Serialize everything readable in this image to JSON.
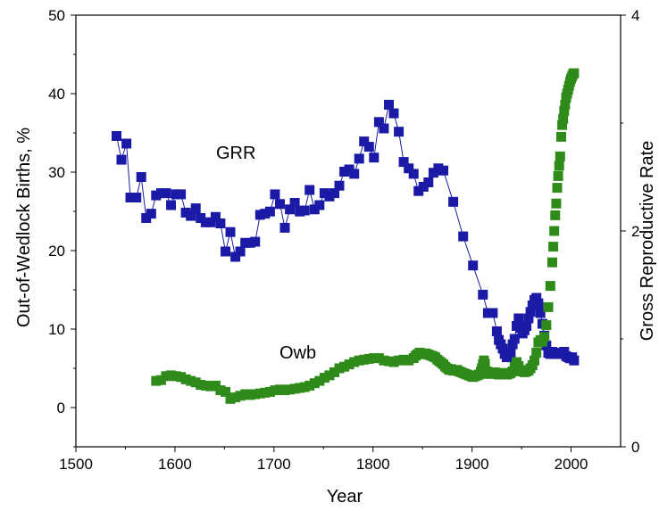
{
  "chart_data": {
    "type": "scatter",
    "title": "",
    "xlabel": "Year",
    "ylabel_left": "Out-of-Wedlock Births, %",
    "ylabel_right": "Gross Reproductive Rate",
    "xlim": [
      1500,
      2050
    ],
    "ylim_left": [
      -5,
      50
    ],
    "ylim_right": [
      0,
      4
    ],
    "x_ticks": [
      "1500",
      "1600",
      "1700",
      "1800",
      "1900",
      "2000"
    ],
    "y_left_ticks": [
      "0",
      "10",
      "20",
      "30",
      "40",
      "50"
    ],
    "y_right_ticks": [
      "0",
      "2",
      "4"
    ],
    "grid": false,
    "series": [
      {
        "name": "GRR",
        "axis": "right",
        "color": "#1a1aa6",
        "marker": "square",
        "line": true,
        "points": [
          [
            1541,
            2.88
          ],
          [
            1546,
            2.66
          ],
          [
            1551,
            2.81
          ],
          [
            1555,
            2.31
          ],
          [
            1561,
            2.31
          ],
          [
            1566,
            2.5
          ],
          [
            1571,
            2.12
          ],
          [
            1576,
            2.16
          ],
          [
            1581,
            2.33
          ],
          [
            1586,
            2.35
          ],
          [
            1591,
            2.35
          ],
          [
            1596,
            2.24
          ],
          [
            1601,
            2.34
          ],
          [
            1606,
            2.34
          ],
          [
            1611,
            2.17
          ],
          [
            1616,
            2.14
          ],
          [
            1621,
            2.21
          ],
          [
            1626,
            2.12
          ],
          [
            1631,
            2.08
          ],
          [
            1636,
            2.08
          ],
          [
            1641,
            2.13
          ],
          [
            1646,
            2.07
          ],
          [
            1651,
            1.81
          ],
          [
            1656,
            1.99
          ],
          [
            1661,
            1.76
          ],
          [
            1666,
            1.81
          ],
          [
            1671,
            1.89
          ],
          [
            1676,
            1.89
          ],
          [
            1681,
            1.9
          ],
          [
            1686,
            2.15
          ],
          [
            1691,
            2.16
          ],
          [
            1696,
            2.18
          ],
          [
            1701,
            2.34
          ],
          [
            1706,
            2.25
          ],
          [
            1711,
            2.03
          ],
          [
            1716,
            2.2
          ],
          [
            1721,
            2.26
          ],
          [
            1726,
            2.18
          ],
          [
            1731,
            2.19
          ],
          [
            1736,
            2.38
          ],
          [
            1741,
            2.2
          ],
          [
            1746,
            2.24
          ],
          [
            1751,
            2.35
          ],
          [
            1756,
            2.32
          ],
          [
            1761,
            2.35
          ],
          [
            1766,
            2.42
          ],
          [
            1771,
            2.55
          ],
          [
            1776,
            2.57
          ],
          [
            1781,
            2.53
          ],
          [
            1786,
            2.67
          ],
          [
            1791,
            2.83
          ],
          [
            1796,
            2.78
          ],
          [
            1801,
            2.68
          ],
          [
            1806,
            3.01
          ],
          [
            1811,
            2.95
          ],
          [
            1816,
            3.17
          ],
          [
            1821,
            3.09
          ],
          [
            1826,
            2.92
          ],
          [
            1831,
            2.64
          ],
          [
            1836,
            2.58
          ],
          [
            1841,
            2.53
          ],
          [
            1846,
            2.37
          ],
          [
            1851,
            2.41
          ],
          [
            1856,
            2.45
          ],
          [
            1861,
            2.54
          ],
          [
            1866,
            2.58
          ],
          [
            1871,
            2.56
          ],
          [
            1881,
            2.27
          ],
          [
            1891,
            1.95
          ],
          [
            1901,
            1.68
          ],
          [
            1911,
            1.41
          ],
          [
            1916,
            1.24
          ],
          [
            1921,
            1.24
          ],
          [
            1925,
            1.07
          ],
          [
            1927,
            0.99
          ],
          [
            1929,
            0.95
          ],
          [
            1931,
            0.91
          ],
          [
            1933,
            0.86
          ],
          [
            1935,
            0.83
          ],
          [
            1937,
            0.84
          ],
          [
            1939,
            0.86
          ],
          [
            1941,
            0.95
          ],
          [
            1943,
            1.0
          ],
          [
            1945,
            1.12
          ],
          [
            1947,
            1.19
          ],
          [
            1949,
            1.1
          ],
          [
            1951,
            1.05
          ],
          [
            1953,
            1.08
          ],
          [
            1955,
            1.12
          ],
          [
            1957,
            1.19
          ],
          [
            1959,
            1.25
          ],
          [
            1961,
            1.31
          ],
          [
            1963,
            1.36
          ],
          [
            1965,
            1.38
          ],
          [
            1967,
            1.33
          ],
          [
            1969,
            1.24
          ],
          [
            1971,
            1.14
          ],
          [
            1973,
            1.03
          ],
          [
            1975,
            0.94
          ],
          [
            1977,
            0.87
          ],
          [
            1979,
            0.86
          ],
          [
            1981,
            0.88
          ],
          [
            1983,
            0.86
          ],
          [
            1985,
            0.87
          ],
          [
            1987,
            0.86
          ],
          [
            1989,
            0.86
          ],
          [
            1991,
            0.87
          ],
          [
            1993,
            0.88
          ],
          [
            1995,
            0.84
          ],
          [
            1997,
            0.83
          ],
          [
            1999,
            0.82
          ],
          [
            2001,
            0.83
          ],
          [
            2003,
            0.8
          ]
        ]
      },
      {
        "name": "Owb",
        "axis": "left",
        "color": "#2e8b1a",
        "marker": "square",
        "line": false,
        "points": [
          [
            1581,
            3.4
          ],
          [
            1586,
            3.5
          ],
          [
            1591,
            4.0
          ],
          [
            1596,
            4.1
          ],
          [
            1601,
            4.0
          ],
          [
            1606,
            3.9
          ],
          [
            1611,
            3.6
          ],
          [
            1616,
            3.4
          ],
          [
            1621,
            3.2
          ],
          [
            1626,
            2.9
          ],
          [
            1631,
            2.8
          ],
          [
            1636,
            2.7
          ],
          [
            1641,
            2.8
          ],
          [
            1646,
            2.2
          ],
          [
            1651,
            2.0
          ],
          [
            1656,
            1.1
          ],
          [
            1661,
            1.3
          ],
          [
            1666,
            1.5
          ],
          [
            1671,
            1.7
          ],
          [
            1676,
            1.6
          ],
          [
            1681,
            1.7
          ],
          [
            1686,
            1.8
          ],
          [
            1691,
            1.9
          ],
          [
            1696,
            2.0
          ],
          [
            1701,
            2.2
          ],
          [
            1706,
            2.3
          ],
          [
            1711,
            2.2
          ],
          [
            1716,
            2.3
          ],
          [
            1721,
            2.4
          ],
          [
            1726,
            2.5
          ],
          [
            1731,
            2.6
          ],
          [
            1736,
            2.8
          ],
          [
            1741,
            3.1
          ],
          [
            1746,
            3.4
          ],
          [
            1751,
            3.8
          ],
          [
            1756,
            4.1
          ],
          [
            1761,
            4.5
          ],
          [
            1766,
            5.0
          ],
          [
            1771,
            5.2
          ],
          [
            1776,
            5.5
          ],
          [
            1781,
            5.8
          ],
          [
            1786,
            6.0
          ],
          [
            1791,
            6.1
          ],
          [
            1796,
            6.2
          ],
          [
            1801,
            6.3
          ],
          [
            1806,
            6.3
          ],
          [
            1811,
            6.0
          ],
          [
            1816,
            5.9
          ],
          [
            1821,
            5.8
          ],
          [
            1826,
            6.0
          ],
          [
            1831,
            6.1
          ],
          [
            1836,
            6.0
          ],
          [
            1841,
            6.3
          ],
          [
            1843,
            6.6
          ],
          [
            1845,
            6.8
          ],
          [
            1847,
            7.0
          ],
          [
            1849,
            6.9
          ],
          [
            1851,
            6.8
          ],
          [
            1853,
            6.9
          ],
          [
            1855,
            6.8
          ],
          [
            1857,
            6.7
          ],
          [
            1859,
            6.6
          ],
          [
            1861,
            6.5
          ],
          [
            1863,
            6.4
          ],
          [
            1865,
            6.1
          ],
          [
            1867,
            5.9
          ],
          [
            1869,
            5.7
          ],
          [
            1871,
            5.5
          ],
          [
            1873,
            5.2
          ],
          [
            1875,
            5.0
          ],
          [
            1877,
            4.8
          ],
          [
            1879,
            4.9
          ],
          [
            1881,
            4.7
          ],
          [
            1883,
            4.7
          ],
          [
            1885,
            4.8
          ],
          [
            1887,
            4.6
          ],
          [
            1889,
            4.5
          ],
          [
            1891,
            4.4
          ],
          [
            1893,
            4.3
          ],
          [
            1895,
            4.2
          ],
          [
            1897,
            4.1
          ],
          [
            1899,
            4.0
          ],
          [
            1901,
            3.9
          ],
          [
            1903,
            4.0
          ],
          [
            1905,
            4.1
          ],
          [
            1907,
            4.2
          ],
          [
            1909,
            4.6
          ],
          [
            1910,
            5.0
          ],
          [
            1911,
            5.5
          ],
          [
            1912,
            6.0
          ],
          [
            1913,
            5.6
          ],
          [
            1915,
            4.6
          ],
          [
            1917,
            4.3
          ],
          [
            1919,
            4.3
          ],
          [
            1921,
            4.4
          ],
          [
            1923,
            4.5
          ],
          [
            1925,
            4.3
          ],
          [
            1927,
            4.2
          ],
          [
            1929,
            4.3
          ],
          [
            1931,
            4.4
          ],
          [
            1933,
            4.4
          ],
          [
            1935,
            4.2
          ],
          [
            1937,
            4.3
          ],
          [
            1939,
            4.4
          ],
          [
            1941,
            4.6
          ],
          [
            1943,
            5.2
          ],
          [
            1945,
            5.8
          ],
          [
            1947,
            5.3
          ],
          [
            1949,
            4.8
          ],
          [
            1951,
            4.6
          ],
          [
            1953,
            4.5
          ],
          [
            1955,
            4.6
          ],
          [
            1957,
            4.7
          ],
          [
            1959,
            5.0
          ],
          [
            1961,
            5.4
          ],
          [
            1963,
            6.0
          ],
          [
            1965,
            7.0
          ],
          [
            1967,
            8.3
          ],
          [
            1969,
            8.6
          ],
          [
            1971,
            8.4
          ],
          [
            1973,
            9.0
          ],
          [
            1975,
            10.5
          ],
          [
            1977,
            12.8
          ],
          [
            1979,
            15.5
          ],
          [
            1981,
            18.5
          ],
          [
            1982,
            20.5
          ],
          [
            1983,
            22.5
          ],
          [
            1984,
            24.5
          ],
          [
            1985,
            26.0
          ],
          [
            1986,
            28.0
          ],
          [
            1987,
            29.5
          ],
          [
            1988,
            30.8
          ],
          [
            1989,
            32.0
          ],
          [
            1990,
            34.5
          ],
          [
            1991,
            36.0
          ],
          [
            1992,
            36.8
          ],
          [
            1993,
            37.8
          ],
          [
            1994,
            38.6
          ],
          [
            1995,
            39.5
          ],
          [
            1996,
            40.0
          ],
          [
            1997,
            40.5
          ],
          [
            1998,
            41.0
          ],
          [
            1999,
            41.5
          ],
          [
            2000,
            41.9
          ],
          [
            2001,
            42.2
          ],
          [
            2002,
            42.5
          ],
          [
            2003,
            42.6
          ]
        ]
      }
    ],
    "annotations": [
      "GRR",
      "Owb"
    ]
  }
}
